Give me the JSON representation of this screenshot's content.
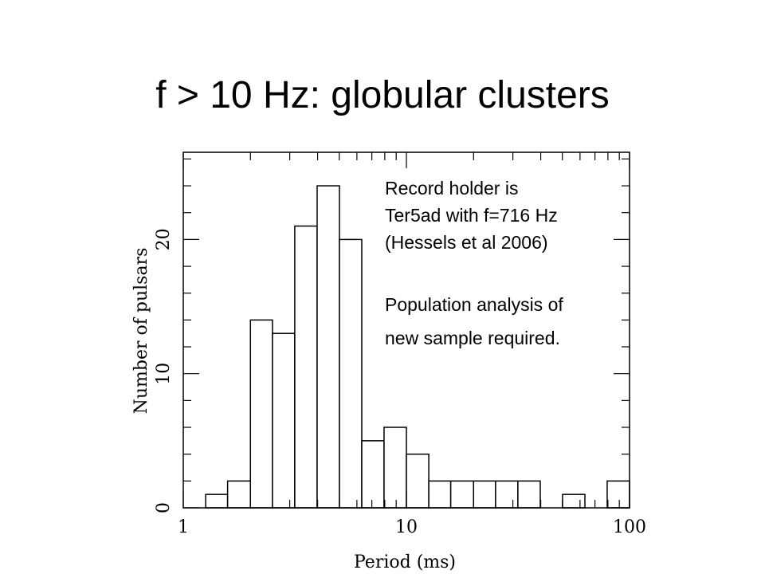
{
  "slide": {
    "title": "f > 10 Hz: globular clusters",
    "notes": [
      "Record holder is",
      "Ter5ad with f=716 Hz",
      "(Hessels et al 2006)",
      "Population analysis of",
      "new sample required."
    ]
  },
  "chart_data": {
    "type": "bar",
    "title": "",
    "xlabel": "Period (ms)",
    "ylabel": "Number of pulsars",
    "x_scale": "log",
    "xlim": [
      1,
      100
    ],
    "ylim": [
      0,
      26.5
    ],
    "x_ticks": [
      1,
      10,
      100
    ],
    "x_tick_labels": [
      "1",
      "10",
      "100"
    ],
    "y_ticks": [
      0,
      10,
      20
    ],
    "y_tick_labels": [
      "0",
      "10",
      "20"
    ],
    "bin_edges": [
      1.26,
      1.58,
      2.0,
      2.51,
      3.16,
      3.98,
      5.01,
      6.31,
      7.94,
      10.0,
      12.6,
      15.8,
      20.0,
      25.1,
      31.6,
      39.8,
      50.1,
      63.1,
      79.4,
      100
    ],
    "values": [
      1,
      2,
      14,
      13,
      21,
      24,
      20,
      5,
      6,
      4,
      2,
      2,
      2,
      2,
      2,
      0,
      1,
      0,
      2
    ],
    "style": {
      "fill": "#ffffff",
      "stroke": "#000000"
    }
  }
}
